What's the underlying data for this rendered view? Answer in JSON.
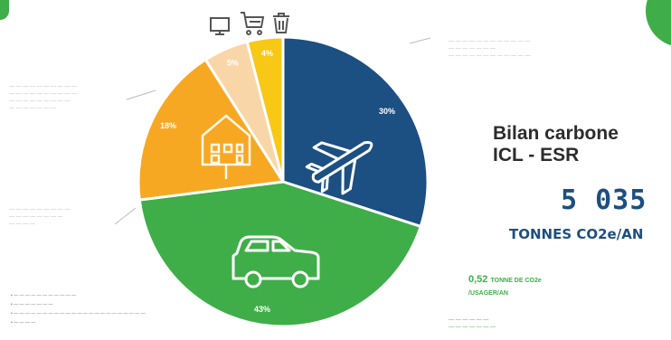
{
  "chart_data": {
    "type": "pie",
    "title": "Bilan carbone ICL - ESR",
    "slices": [
      {
        "label": "30%",
        "value": 30,
        "color": "#1c4f82",
        "icon": "airplane-icon"
      },
      {
        "label": "43%",
        "value": 43,
        "color": "#3fae49",
        "icon": "car-icon"
      },
      {
        "label": "18%",
        "value": 18,
        "color": "#f7a823",
        "icon": "building-icon"
      },
      {
        "label": "5%",
        "value": 5,
        "color": "#f9d6a8",
        "icon": ""
      },
      {
        "label": "4%",
        "value": 4,
        "color": "#f7c815",
        "icon": ""
      }
    ]
  },
  "header": {
    "title_line1": "Bilan carbone",
    "title_line2": "ICL - ESR",
    "total": "5 035",
    "total_unit": "TONNES CO2e/AN",
    "per_user_value": "0,52",
    "per_user_unit_1": "TONNE DE CO2e",
    "per_user_unit_2": "/USAGER/AN"
  },
  "top_icons": [
    "computer-icon",
    "cart-icon",
    "trash-icon"
  ],
  "colors": {
    "navy": "#1c4f82",
    "green": "#3fae49",
    "orange": "#f7a823",
    "peach": "#f9d6a8",
    "yellow": "#f7c815"
  }
}
